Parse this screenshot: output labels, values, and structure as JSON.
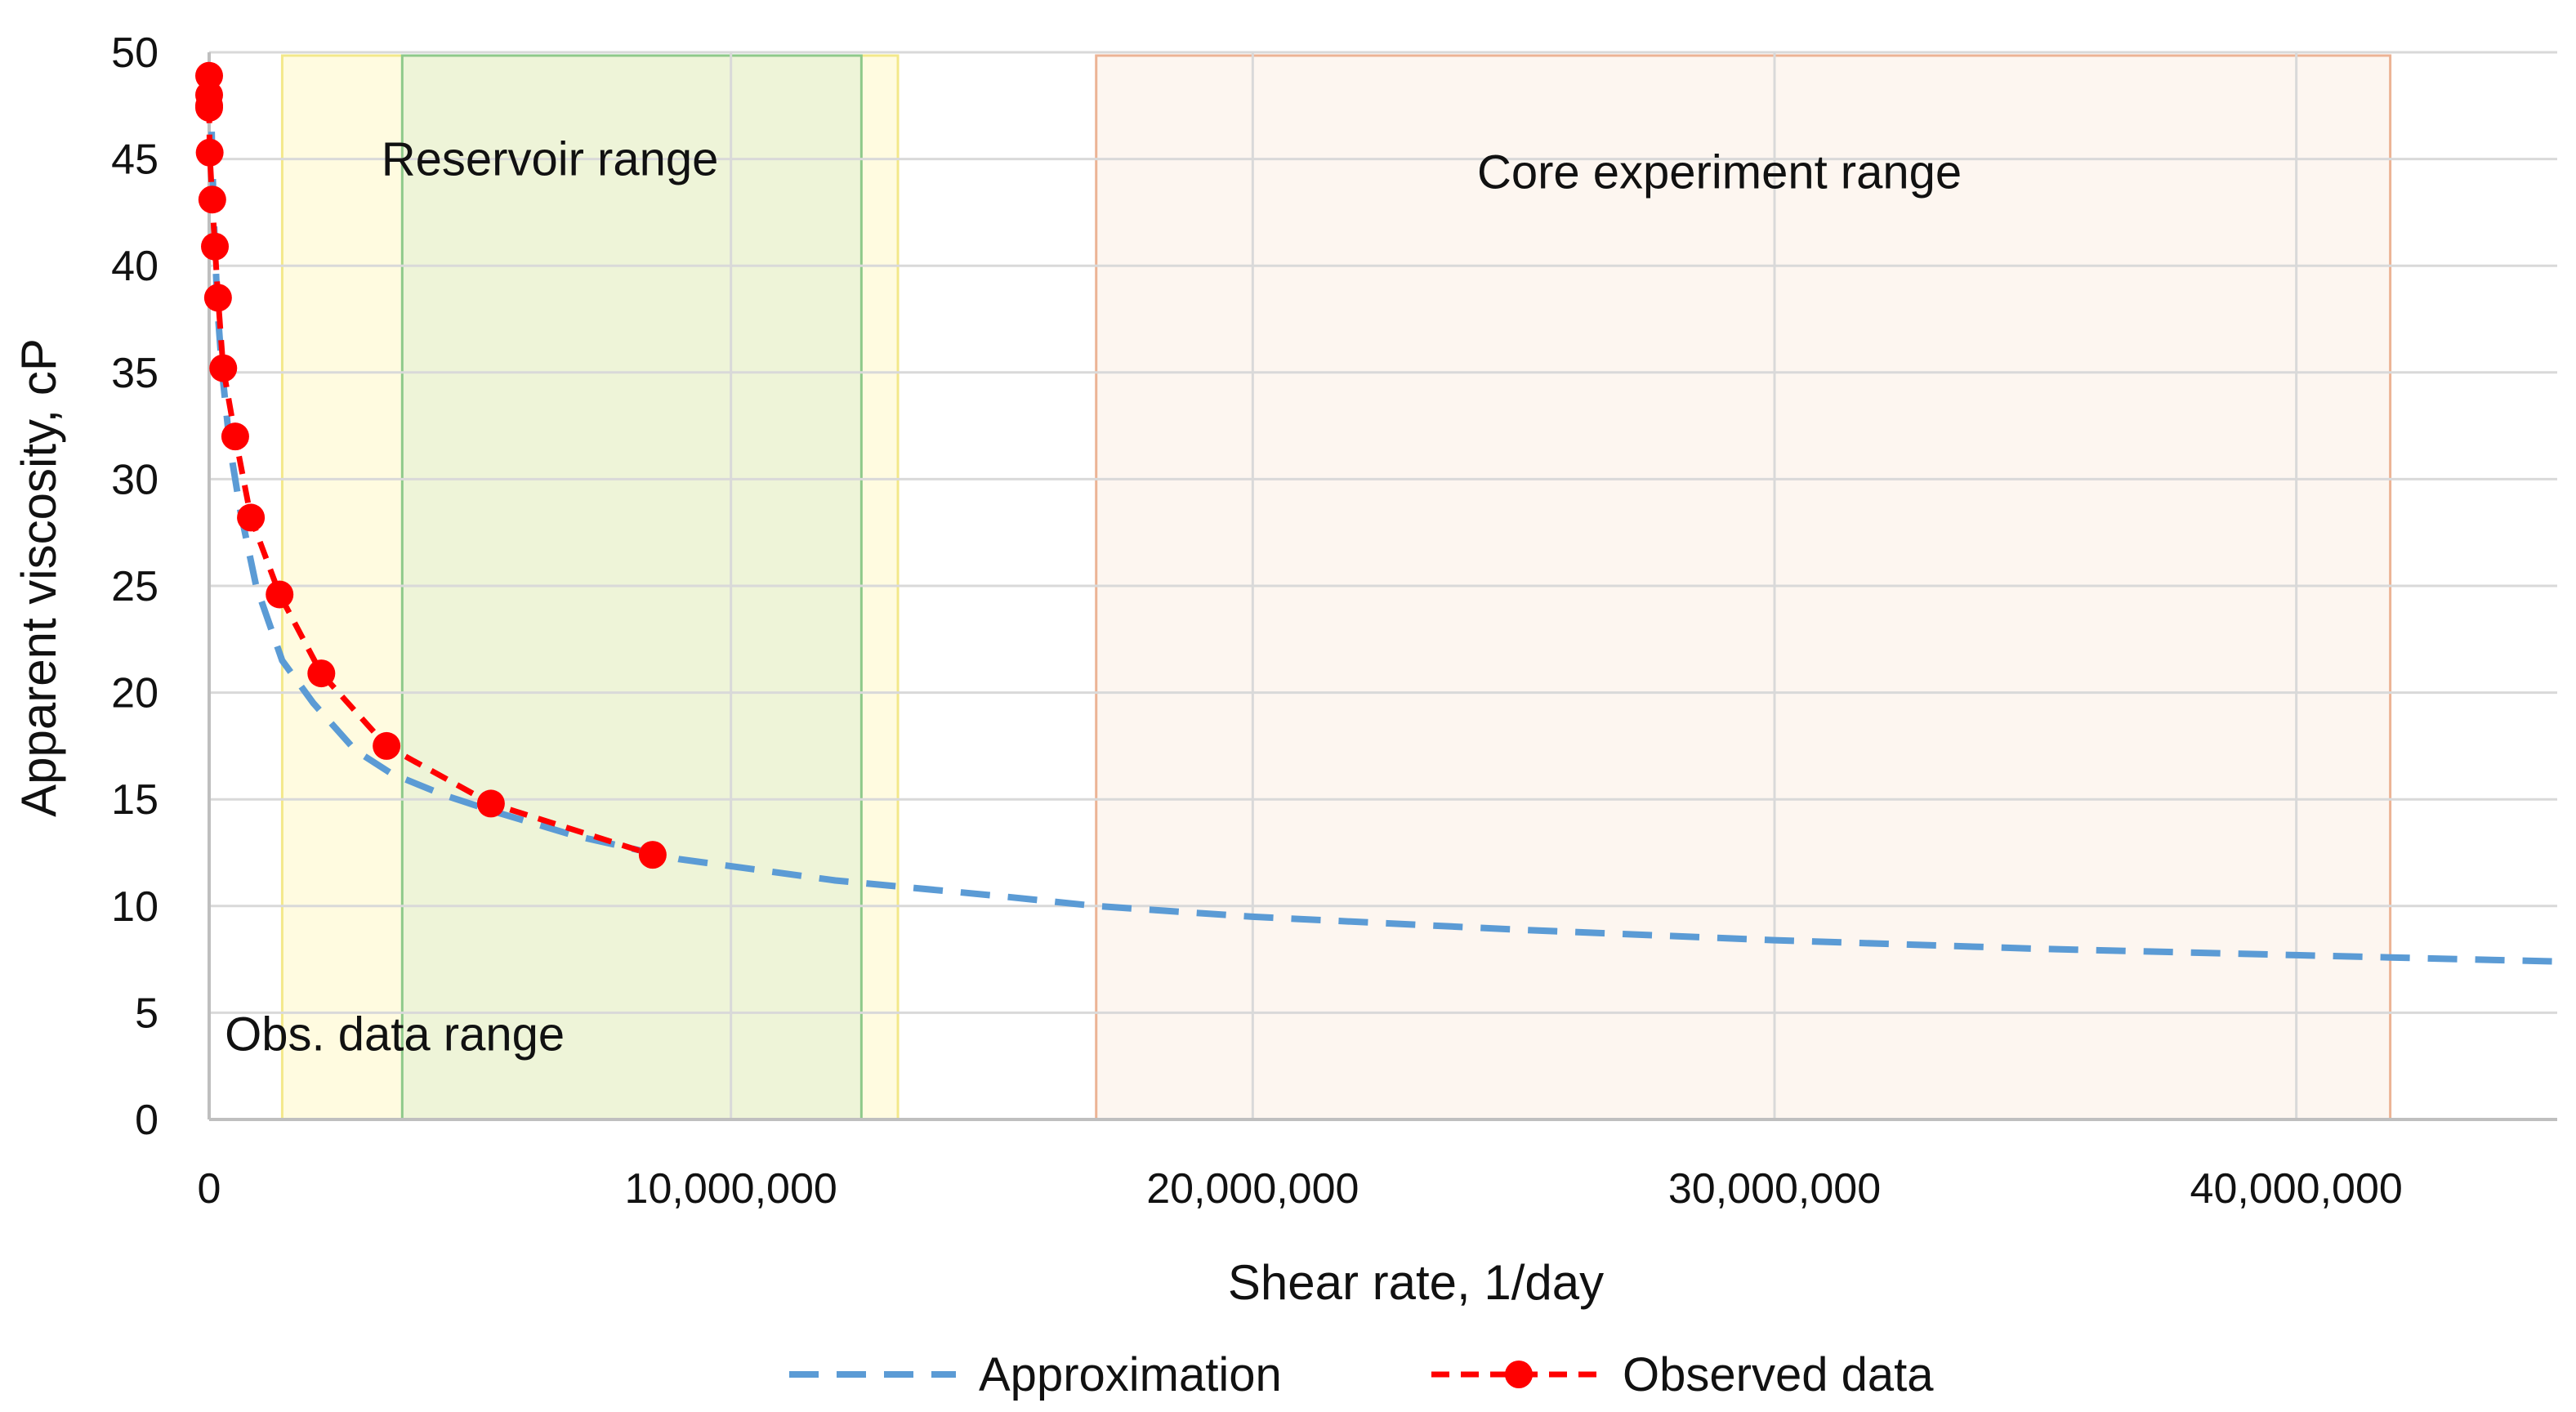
{
  "chart_data": {
    "type": "line",
    "title": "",
    "xlabel": "Shear rate, 1/day",
    "ylabel": "Apparent viscosity, cP",
    "xlim": [
      0,
      45000000
    ],
    "ylim": [
      0,
      50
    ],
    "x_ticks": [
      0,
      10000000,
      20000000,
      30000000,
      40000000
    ],
    "x_tick_labels": [
      "0",
      "10,000,000",
      "20,000,000",
      "30,000,000",
      "40,000,000"
    ],
    "y_ticks": [
      0,
      5,
      10,
      15,
      20,
      25,
      30,
      35,
      40,
      45,
      50
    ],
    "y_tick_labels": [
      "0",
      "5",
      "10",
      "15",
      "20",
      "25",
      "30",
      "35",
      "40",
      "45",
      "50"
    ],
    "grid": true,
    "legend_position": "bottom",
    "regions": [
      {
        "name": "Obs. data range",
        "x_start": 1400000,
        "x_end": 13200000,
        "fill": "#fffbe0",
        "stroke": "#f3e88a",
        "label_x": 300000,
        "label_y": 4
      },
      {
        "name": "Reservoir range",
        "x_start": 3700000,
        "x_end": 12500000,
        "fill": "#eef4d8",
        "stroke": "#8ec98a",
        "label_x": 3300000,
        "label_y": 45
      },
      {
        "name": "Core experiment range",
        "x_start": 17000000,
        "x_end": 41800000,
        "fill": "#fdf6f0",
        "stroke": "#ecb394",
        "label_x": 24300000,
        "label_y": 44.4
      }
    ],
    "series": [
      {
        "name": "Approximation",
        "style": "dashed",
        "color": "#5b9bd5",
        "x": [
          30000,
          60000,
          100000,
          160000,
          250000,
          400000,
          600000,
          900000,
          1400000,
          2000000,
          2800000,
          3500000,
          4500000,
          5500000,
          7000000,
          9000000,
          12000000,
          15000000,
          17000000,
          20000000,
          25000000,
          30000000,
          35000000,
          40000000,
          45000000
        ],
        "y": [
          48.5,
          45,
          41.5,
          38,
          35,
          31.5,
          28.5,
          25,
          21.5,
          19.5,
          17.3,
          16.2,
          15.2,
          14.4,
          13.3,
          12.2,
          11.2,
          10.5,
          10.0,
          9.5,
          8.9,
          8.4,
          8.0,
          7.7,
          7.4
        ]
      },
      {
        "name": "Observed data",
        "style": "dashed-markers",
        "color": "#ff0000",
        "x": [
          0,
          0,
          0,
          0,
          10000,
          60000,
          110000,
          170000,
          270000,
          500000,
          800000,
          1350000,
          2150000,
          3400000,
          5400000,
          8500000
        ],
        "y": [
          48.9,
          48.0,
          47.5,
          47.4,
          45.3,
          43.1,
          40.9,
          38.5,
          35.2,
          32.0,
          28.2,
          24.6,
          20.9,
          17.5,
          14.8,
          12.4
        ]
      }
    ]
  }
}
